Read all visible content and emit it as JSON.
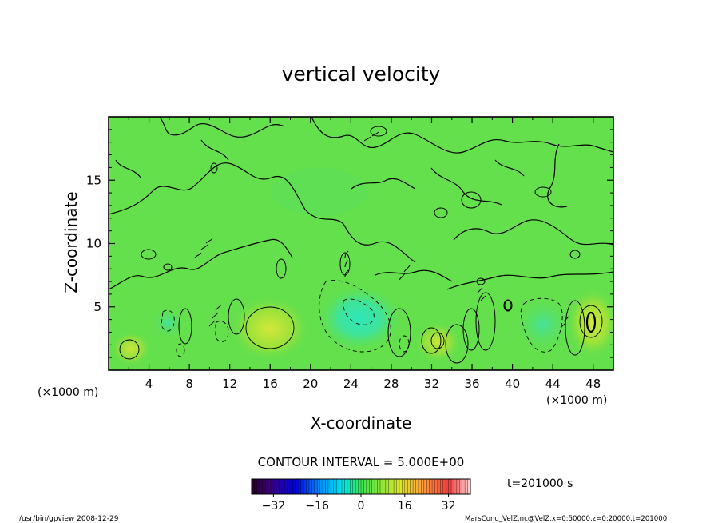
{
  "chart_data": {
    "type": "heatmap",
    "title": "vertical velocity",
    "xlabel": "X-coordinate",
    "ylabel": "Z-coordinate",
    "x_unit": "(×1000 m)",
    "y_unit": "(×1000 m)",
    "xlim": [
      0,
      50
    ],
    "ylim": [
      0,
      20
    ],
    "x_ticks": [
      "4",
      "8",
      "12",
      "16",
      "20",
      "24",
      "28",
      "32",
      "36",
      "40",
      "44",
      "48"
    ],
    "y_ticks": [
      "5",
      "10",
      "15"
    ],
    "contour_interval_text": "CONTOUR INTERVAL = 5.000E+00",
    "time_text": "t=201000 s",
    "colorbar": {
      "range": [
        -40,
        40
      ],
      "ticks": [
        "−32",
        "−16",
        "0",
        "16",
        "32"
      ]
    },
    "features": [
      {
        "kind": "updraft",
        "x": 16.0,
        "z": 3.3,
        "value": 10
      },
      {
        "kind": "updraft",
        "x": 48.0,
        "z": 3.8,
        "value": 15
      },
      {
        "kind": "updraft",
        "x": 2.2,
        "z": 1.6,
        "value": 7
      },
      {
        "kind": "updraft",
        "x": 32.5,
        "z": 2.3,
        "value": 5
      },
      {
        "kind": "downdraft",
        "x": 24.0,
        "z": 4.3,
        "value": -12
      },
      {
        "kind": "downdraft",
        "x": 42.0,
        "z": 3.8,
        "value": -8
      },
      {
        "kind": "downdraft",
        "x": 5.5,
        "z": 3.8,
        "value": -4
      }
    ]
  },
  "footer": {
    "left": "/usr/bin/gpview   2008-12-29",
    "right": "MarsCond_VelZ.nc@VelZ,x=0:50000,z=0:20000,t=201000"
  }
}
